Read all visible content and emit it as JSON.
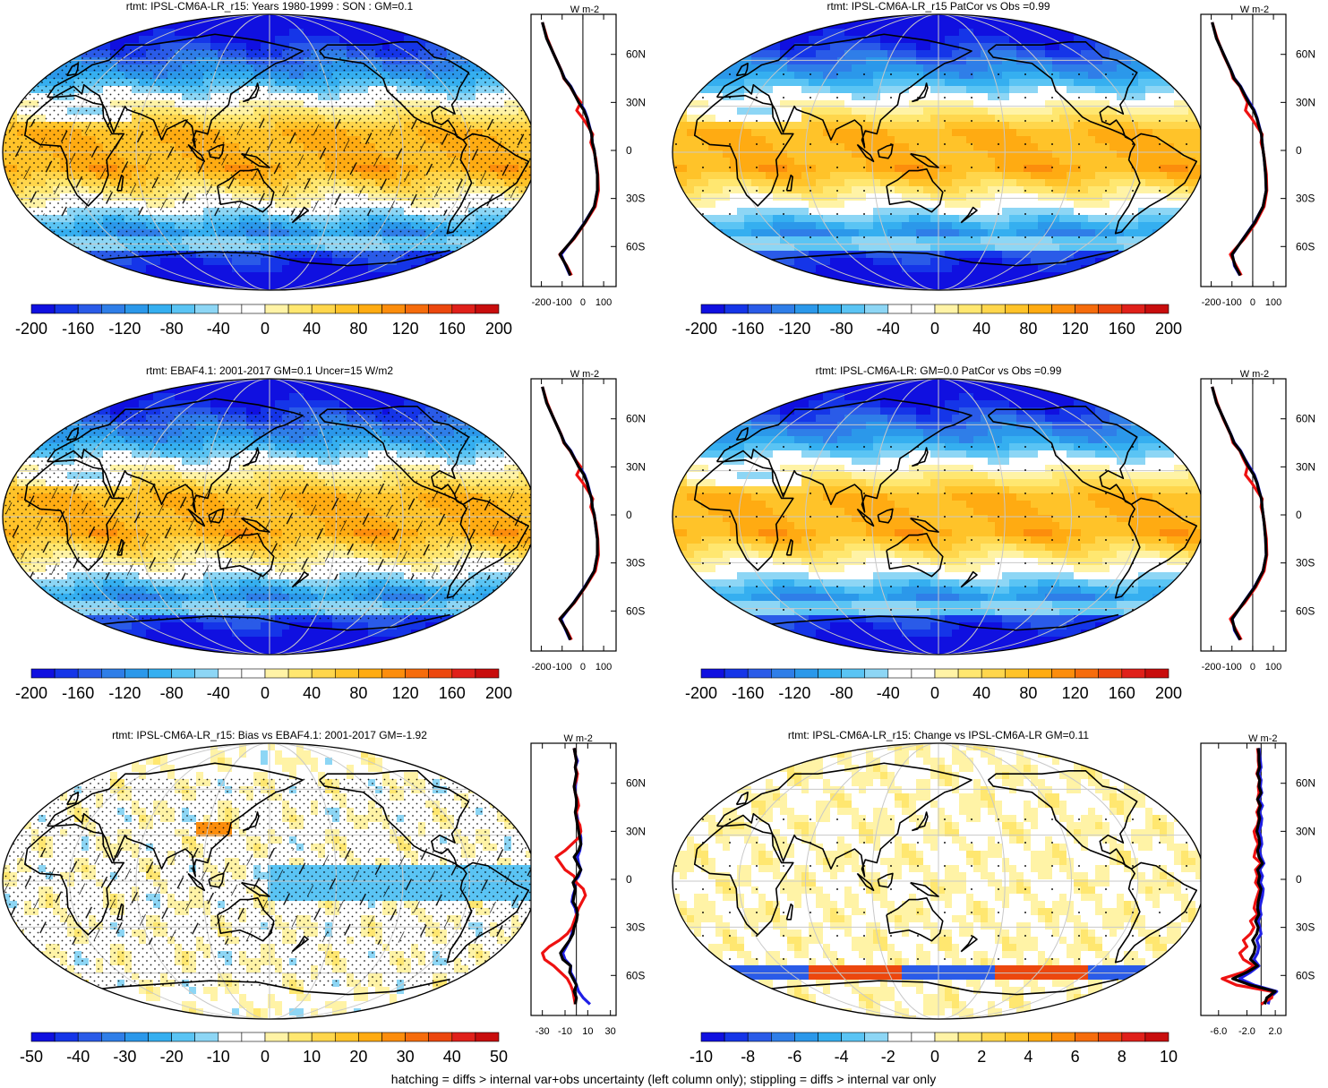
{
  "footer": "hatching = diffs > internal var+obs uncertainty (left column only); stippling = diffs > internal var only",
  "colors": {
    "blue_line": "#1f1fe6",
    "red_line": "#ee1111",
    "black_line": "#000000",
    "continents": "#000000",
    "graticule": "#c8c8c8"
  },
  "palette": [
    "#1010e0",
    "#1535e8",
    "#2a5be8",
    "#2f7ee8",
    "#2b98ea",
    "#35aff0",
    "#5ac4f4",
    "#8dd6f5",
    "#ffffff",
    "#ffffff",
    "#fff3a6",
    "#ffe770",
    "#ffd64c",
    "#ffc329",
    "#ffab12",
    "#fc8d0c",
    "#f66c0c",
    "#ec470e",
    "#e0201a",
    "#c80d0d"
  ],
  "chart_data": [
    {
      "type": "heatmap",
      "title": "rtmt: IPSL-CM6A-LR_r15: Years 1980-1999 : SON : GM=0.1",
      "colorbar_ticks": [
        "-200",
        "-160",
        "-120",
        "-80",
        "-40",
        "0",
        "40",
        "80",
        "120",
        "160",
        "200"
      ],
      "field": "toa",
      "hatching": true,
      "stippling": "dense",
      "profile": {
        "unit": "W m-2",
        "x_ticks": [
          "-200",
          "-100",
          "0",
          "100"
        ],
        "xlim": [
          -250,
          160
        ],
        "lat_labels": [
          "60N",
          "30N",
          "0",
          "30S",
          "60S"
        ],
        "lat": [
          -78,
          -72,
          -65,
          -55,
          -45,
          -35,
          -25,
          -15,
          -5,
          0,
          5,
          10,
          15,
          20,
          25,
          30,
          35,
          40,
          45,
          50,
          60,
          70,
          80
        ],
        "black": [
          -60,
          -80,
          -110,
          -45,
          10,
          55,
          70,
          70,
          60,
          55,
          45,
          42,
          30,
          20,
          5,
          -20,
          -40,
          -60,
          -90,
          -105,
          -140,
          -175,
          -195
        ],
        "red": [
          -55,
          -78,
          -112,
          -42,
          12,
          60,
          75,
          72,
          62,
          52,
          38,
          48,
          25,
          0,
          -30,
          -10,
          -40,
          -62,
          -92,
          -104,
          -140,
          -172,
          -195
        ],
        "blue": [
          -62,
          -82,
          -105,
          -46,
          8,
          55,
          70,
          70,
          60,
          55,
          45,
          42,
          32,
          22,
          8,
          -15,
          -38,
          -58,
          -88,
          -104,
          -140,
          -174,
          -195
        ]
      }
    },
    {
      "type": "heatmap",
      "title": "rtmt: IPSL-CM6A-LR_r15 PatCor vs Obs =0.99",
      "colorbar_ticks": [
        "-200",
        "-160",
        "-120",
        "-80",
        "-40",
        "0",
        "40",
        "80",
        "120",
        "160",
        "200"
      ],
      "field": "toa",
      "hatching": false,
      "stippling": "sparse",
      "profile": {
        "unit": "W m-2",
        "x_ticks": [
          "-200",
          "-100",
          "0",
          "100"
        ],
        "xlim": [
          -250,
          160
        ],
        "lat_labels": [
          "60N",
          "30N",
          "0",
          "30S",
          "60S"
        ],
        "lat": [
          -78,
          -72,
          -65,
          -55,
          -45,
          -35,
          -25,
          -15,
          -5,
          0,
          5,
          10,
          15,
          20,
          25,
          30,
          35,
          40,
          45,
          50,
          60,
          70,
          80
        ],
        "black": [
          -60,
          -85,
          -100,
          -45,
          10,
          50,
          65,
          62,
          55,
          50,
          45,
          42,
          30,
          20,
          5,
          -20,
          -40,
          -60,
          -90,
          -105,
          -140,
          -175,
          -195
        ],
        "red": [
          -55,
          -80,
          -108,
          -40,
          15,
          55,
          68,
          66,
          56,
          50,
          40,
          46,
          20,
          -5,
          -35,
          -25,
          -45,
          -62,
          -95,
          -106,
          -142,
          -172,
          -195
        ],
        "blue": [
          -62,
          -88,
          -98,
          -46,
          8,
          50,
          65,
          62,
          55,
          50,
          45,
          42,
          32,
          22,
          8,
          -15,
          -38,
          -58,
          -88,
          -104,
          -140,
          -174,
          -195
        ]
      }
    },
    {
      "type": "heatmap",
      "title": "rtmt: EBAF4.1: 2001-2017 GM=0.1 Uncer=15 W/m2",
      "colorbar_ticks": [
        "-200",
        "-160",
        "-120",
        "-80",
        "-40",
        "0",
        "40",
        "80",
        "120",
        "160",
        "200"
      ],
      "field": "toa",
      "hatching": true,
      "stippling": "dense",
      "profile": {
        "unit": "W m-2",
        "x_ticks": [
          "-200",
          "-100",
          "0",
          "100"
        ],
        "xlim": [
          -250,
          160
        ],
        "lat_labels": [
          "60N",
          "30N",
          "0",
          "30S",
          "60S"
        ],
        "lat": [
          -78,
          -72,
          -65,
          -55,
          -45,
          -35,
          -25,
          -15,
          -5,
          0,
          5,
          10,
          15,
          20,
          25,
          30,
          35,
          40,
          45,
          50,
          60,
          70,
          80
        ],
        "black": [
          -60,
          -80,
          -110,
          -45,
          10,
          55,
          70,
          70,
          60,
          55,
          45,
          42,
          30,
          20,
          5,
          -20,
          -40,
          -60,
          -90,
          -105,
          -140,
          -175,
          -195
        ],
        "red": [
          -55,
          -78,
          -112,
          -42,
          12,
          60,
          75,
          72,
          62,
          52,
          38,
          48,
          25,
          0,
          -30,
          -10,
          -40,
          -62,
          -92,
          -104,
          -140,
          -172,
          -195
        ],
        "blue": [
          -62,
          -82,
          -105,
          -46,
          8,
          55,
          70,
          70,
          60,
          55,
          45,
          42,
          32,
          22,
          8,
          -15,
          -38,
          -58,
          -88,
          -104,
          -140,
          -174,
          -195
        ]
      }
    },
    {
      "type": "heatmap",
      "title": "rtmt: IPSL-CM6A-LR: GM=0.0 PatCor vs Obs =0.99",
      "colorbar_ticks": [
        "-200",
        "-160",
        "-120",
        "-80",
        "-40",
        "0",
        "40",
        "80",
        "120",
        "160",
        "200"
      ],
      "field": "toa",
      "hatching": false,
      "stippling": "sparse",
      "profile": {
        "unit": "W m-2",
        "x_ticks": [
          "-200",
          "-100",
          "0",
          "100"
        ],
        "xlim": [
          -250,
          160
        ],
        "lat_labels": [
          "60N",
          "30N",
          "0",
          "30S",
          "60S"
        ],
        "lat": [
          -78,
          -72,
          -65,
          -55,
          -45,
          -35,
          -25,
          -15,
          -5,
          0,
          5,
          10,
          15,
          20,
          25,
          30,
          35,
          40,
          45,
          50,
          60,
          70,
          80
        ],
        "black": [
          -60,
          -85,
          -100,
          -45,
          10,
          50,
          65,
          62,
          55,
          50,
          45,
          42,
          30,
          20,
          5,
          -20,
          -40,
          -60,
          -90,
          -105,
          -140,
          -175,
          -195
        ],
        "red": [
          -55,
          -80,
          -108,
          -40,
          15,
          55,
          68,
          66,
          56,
          50,
          40,
          46,
          20,
          -5,
          -35,
          -25,
          -45,
          -62,
          -95,
          -106,
          -142,
          -172,
          -195
        ],
        "blue": [
          -62,
          -88,
          -98,
          -46,
          8,
          50,
          65,
          62,
          55,
          50,
          45,
          42,
          32,
          22,
          8,
          -15,
          -38,
          -58,
          -88,
          -104,
          -140,
          -174,
          -195
        ]
      }
    },
    {
      "type": "heatmap",
      "title": "rtmt: IPSL-CM6A-LR_r15: Bias vs EBAF4.1: 2001-2017  GM=-1.92",
      "colorbar_ticks": [
        "-50",
        "-40",
        "-30",
        "-20",
        "-10",
        "0",
        "10",
        "20",
        "30",
        "40",
        "50"
      ],
      "field": "bias",
      "hatching": true,
      "stippling": "dense",
      "profile": {
        "unit": "W m-2",
        "x_ticks": [
          "-30",
          "-10",
          "10",
          "30"
        ],
        "xlim": [
          -40,
          35
        ],
        "lat_labels": [
          "60N",
          "30N",
          "0",
          "30S",
          "60S"
        ],
        "lat": [
          -78,
          -74,
          -70,
          -66,
          -62,
          -58,
          -54,
          -50,
          -46,
          -42,
          -38,
          -34,
          -30,
          -26,
          -22,
          -18,
          -14,
          -10,
          -6,
          -2,
          2,
          6,
          10,
          14,
          18,
          22,
          26,
          30,
          34,
          38,
          42,
          46,
          50,
          54,
          58,
          62,
          66,
          70,
          74,
          78,
          82
        ],
        "black": [
          -1,
          0,
          -2,
          0,
          -3,
          -6,
          -5,
          -12,
          -14,
          -10,
          -6,
          -3,
          -2,
          0,
          1,
          0,
          -3,
          -2,
          -1,
          -3,
          1,
          4,
          1,
          -2,
          2,
          4,
          3,
          2,
          1,
          0,
          -1,
          0,
          0,
          -1,
          -2,
          -1,
          0,
          -1,
          0,
          -1,
          -2
        ],
        "red": [
          -1,
          -2,
          -3,
          -5,
          -8,
          -14,
          -20,
          -28,
          -30,
          -24,
          -15,
          -8,
          -4,
          -2,
          0,
          2,
          5,
          8,
          6,
          0,
          -2,
          -10,
          -14,
          -18,
          -10,
          -4,
          2,
          4,
          3,
          0,
          0,
          2,
          1,
          -1,
          -2,
          0,
          1,
          -1,
          0,
          -1,
          -2
        ],
        "blue": [
          12,
          6,
          2,
          0,
          -2,
          -5,
          -5,
          -10,
          -12,
          -9,
          -6,
          -4,
          -3,
          -1,
          0,
          -1,
          -4,
          -3,
          -1,
          -2,
          2,
          4,
          2,
          1,
          3,
          4,
          4,
          3,
          2,
          1,
          0,
          0,
          1,
          -1,
          -1,
          0,
          0,
          -1,
          1,
          -1,
          -2
        ]
      }
    },
    {
      "type": "heatmap",
      "title": "rtmt: IPSL-CM6A-LR_r15: Change vs IPSL-CM6A-LR GM=0.11",
      "colorbar_ticks": [
        "-10",
        "-8",
        "-6",
        "-4",
        "-2",
        "0",
        "2",
        "4",
        "6",
        "8",
        "10"
      ],
      "field": "change",
      "hatching": false,
      "stippling": "sparse",
      "profile": {
        "unit": "W m-2",
        "x_ticks": [
          "-6.0",
          "-2.0",
          "2.0"
        ],
        "xlim": [
          -8.5,
          3.5
        ],
        "lat_labels": [
          "60N",
          "30N",
          "0",
          "30S",
          "60S"
        ],
        "lat": [
          -78,
          -74,
          -70,
          -66,
          -62,
          -58,
          -54,
          -50,
          -46,
          -42,
          -38,
          -34,
          -30,
          -26,
          -22,
          -18,
          -14,
          -10,
          -6,
          -2,
          2,
          6,
          10,
          14,
          18,
          22,
          26,
          30,
          34,
          38,
          42,
          46,
          50,
          54,
          58,
          62,
          66,
          70,
          74,
          78,
          82
        ],
        "black": [
          0.5,
          0.8,
          2.0,
          -1.5,
          -4.0,
          -2.0,
          -0.5,
          -1.5,
          -1.0,
          -0.8,
          -1.2,
          -0.6,
          -0.4,
          -0.8,
          -0.3,
          -0.5,
          -0.4,
          -0.2,
          0.0,
          -0.4,
          -0.2,
          -0.5,
          0.2,
          -0.3,
          -0.5,
          -0.2,
          -0.3,
          -0.6,
          -0.4,
          -0.2,
          -0.4,
          -0.1,
          -0.5,
          0.0,
          -0.3,
          -0.2,
          -0.5,
          -0.2,
          -0.3,
          -0.3,
          -0.4
        ],
        "red": [
          0.0,
          1.5,
          1.5,
          -3.5,
          -5.5,
          -2.5,
          -1.0,
          -2.5,
          -3.0,
          -2.0,
          -2.5,
          -1.5,
          -1.0,
          -1.5,
          -0.5,
          -1.0,
          -0.8,
          -0.5,
          -0.2,
          -0.8,
          -0.5,
          -0.8,
          0.0,
          -1.0,
          -0.8,
          -0.4,
          -0.8,
          -1.0,
          -0.5,
          -0.3,
          -0.6,
          -0.2,
          -0.5,
          -0.3,
          -0.4,
          -0.2,
          -0.6,
          -0.3,
          -0.4,
          -0.4,
          -0.5
        ],
        "blue": [
          1.0,
          1.2,
          2.2,
          -1.0,
          -3.0,
          -1.5,
          -0.3,
          -1.0,
          -0.5,
          -0.3,
          -0.6,
          0.0,
          -0.2,
          -0.4,
          0.0,
          -0.2,
          0.0,
          0.2,
          0.3,
          -0.1,
          0.2,
          -0.2,
          0.4,
          0.0,
          -0.2,
          0.1,
          0.0,
          -0.3,
          0.0,
          0.1,
          -0.2,
          0.2,
          -0.3,
          0.1,
          -0.1,
          0.0,
          -0.3,
          0.0,
          -0.1,
          -0.2,
          -0.3
        ]
      }
    }
  ]
}
